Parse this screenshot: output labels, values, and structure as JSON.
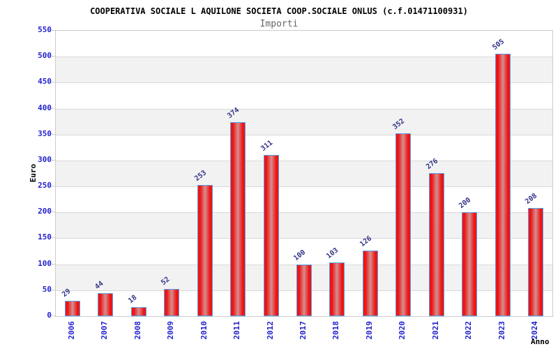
{
  "chart_data": {
    "type": "bar",
    "title": "COOPERATIVA SOCIALE L AQUILONE SOCIETA COOP.SOCIALE ONLUS (c.f.01471100931)",
    "subtitle": "Importi",
    "ylabel": "Euro",
    "xlabel": "Anno",
    "categories": [
      "2006",
      "2007",
      "2008",
      "2009",
      "2010",
      "2011",
      "2012",
      "2017",
      "2018",
      "2019",
      "2020",
      "2021",
      "2022",
      "2023",
      "2024"
    ],
    "values": [
      29,
      44,
      18,
      52,
      253,
      374,
      311,
      100,
      103,
      126,
      352,
      276,
      200,
      505,
      208
    ],
    "ylim": [
      0,
      550
    ],
    "ytick_step": 50,
    "yticks": [
      0,
      50,
      100,
      150,
      200,
      250,
      300,
      350,
      400,
      450,
      500,
      550
    ],
    "grid": "horizontal, alternating shaded bands every 50 units",
    "legend": "none",
    "colors": {
      "bar_edge": "#ee1414",
      "bar_center": "#d58f8f",
      "bar_border": "#55a0e8",
      "axis_tick_label": "#2222cc",
      "value_label": "#333388",
      "band_gray": "#f2f2f2",
      "band_white": "#ffffff",
      "grid_line": "#d9d9d9",
      "plot_border": "#cccccc",
      "title": "#000000",
      "subtitle": "#666666",
      "axis_title": "#000000"
    }
  }
}
